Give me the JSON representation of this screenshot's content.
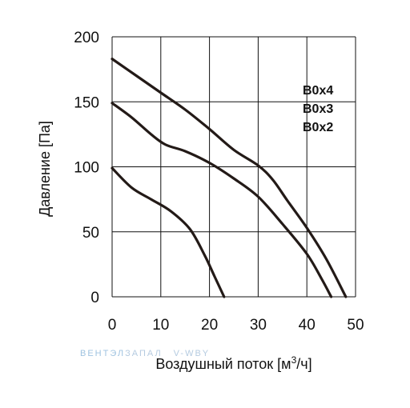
{
  "watermark": {
    "part1": "ВЕНТЭЛ",
    "part2": "ЗАПАЛ",
    "part3": "V-WBY"
  },
  "chart_data": {
    "type": "line",
    "title": "",
    "xlabel": "Воздушный поток [м",
    "xlabel_sup": "3",
    "xlabel_tail": "/ч]",
    "ylabel": "Давление [Па]",
    "xlim": [
      0,
      50
    ],
    "ylim": [
      0,
      200
    ],
    "x_ticks": [
      "0",
      "10",
      "20",
      "30",
      "40",
      "50"
    ],
    "y_ticks": [
      "0",
      "50",
      "100",
      "150",
      "200"
    ],
    "grid": true,
    "line_color": "#231a17",
    "series_labels": [
      "B0x4",
      "B0x3",
      "B0x2"
    ],
    "series": [
      {
        "name": "B0x4",
        "x": [
          0,
          5,
          10,
          15,
          20,
          25,
          30,
          33,
          36,
          40,
          44,
          48
        ],
        "y": [
          183,
          170,
          157,
          144,
          129,
          113,
          101,
          90,
          74,
          53,
          29,
          0
        ]
      },
      {
        "name": "B0x3",
        "x": [
          0,
          4,
          8,
          11,
          15,
          20,
          25,
          30,
          35,
          40,
          43,
          45
        ],
        "y": [
          149,
          138,
          125,
          117,
          112,
          103,
          91,
          77,
          56,
          33,
          14,
          0
        ]
      },
      {
        "name": "B0x2",
        "x": [
          0,
          4,
          8,
          12,
          16,
          19,
          21,
          23
        ],
        "y": [
          99,
          84,
          75,
          66,
          52,
          32,
          16,
          0
        ]
      }
    ]
  }
}
